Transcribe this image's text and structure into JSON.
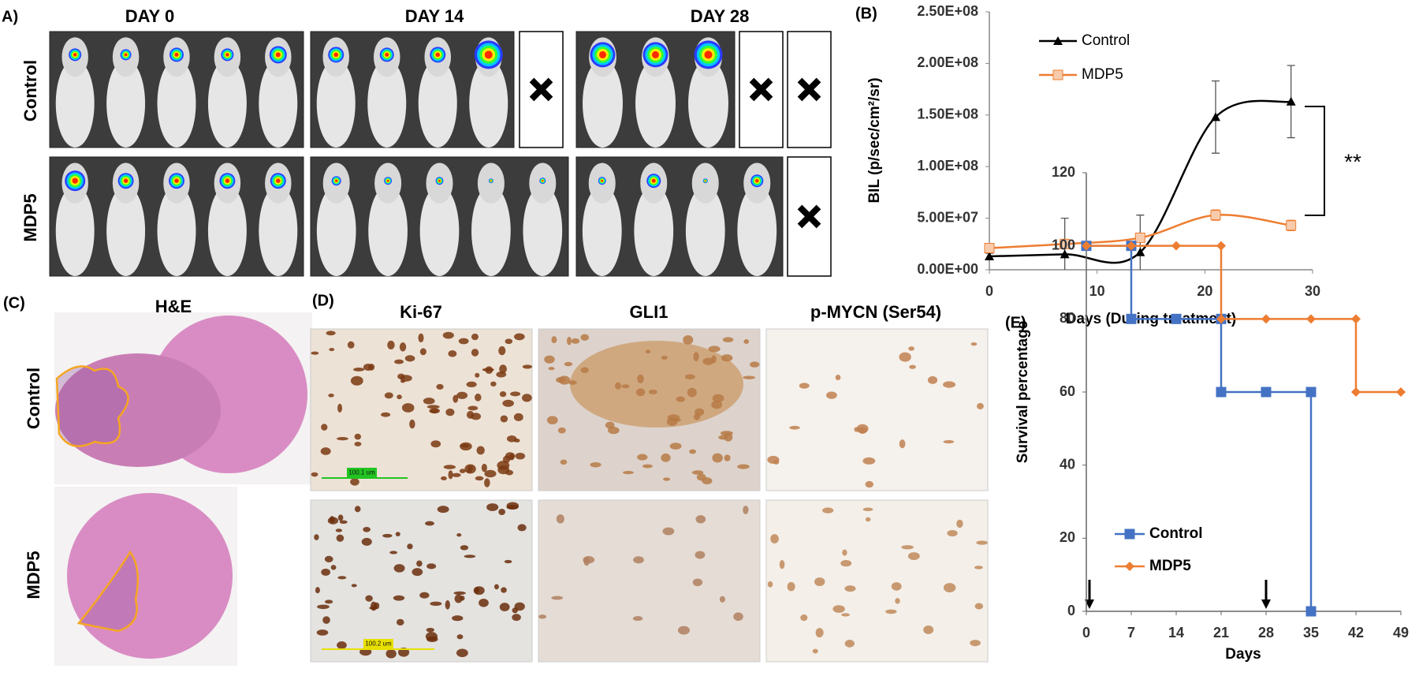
{
  "panel_a": {
    "label": "A)",
    "rows": [
      "Control",
      "MDP5"
    ],
    "days": [
      "DAY 0",
      "DAY 14",
      "DAY 28"
    ]
  },
  "panel_c": {
    "label": "(C)",
    "title": "H&E",
    "rows": [
      "Control",
      "MDP5"
    ]
  },
  "panel_d": {
    "label": "(D)",
    "columns": [
      "Ki-67",
      "GLI1",
      "p-MYCN (Ser54)"
    ],
    "scale_bars": [
      "100.1 um",
      "100.2 um"
    ]
  },
  "chart_data": [
    {
      "type": "line",
      "label": "(B)",
      "smooth": true,
      "x_label": "Days (During treatment)",
      "y_label": "BIL (p/sec/cm²/sr)",
      "x": [
        0,
        7,
        14,
        21,
        28
      ],
      "series": [
        {
          "name": "Control",
          "color": "#000000",
          "marker": "triangle",
          "values": [
            13000000,
            15000000,
            17000000,
            148000000,
            163000000
          ],
          "errors": [
            3000000,
            35000000,
            36000000,
            35000000,
            35000000
          ]
        },
        {
          "name": "MDP5",
          "color": "#ed7d31",
          "marker": "square",
          "values": [
            21000000,
            25000000,
            31000000,
            53000000,
            43000000
          ],
          "errors": [
            2000000,
            2000000,
            3000000,
            5000000,
            5000000
          ]
        }
      ],
      "xlim": [
        0,
        30
      ],
      "xticks": [
        0,
        10,
        20,
        30
      ],
      "ylim": [
        0,
        250000000
      ],
      "yticks": [
        {
          "value": 0,
          "label": "0.00E+00"
        },
        {
          "value": 50000000,
          "label": "5.00E+07"
        },
        {
          "value": 100000000,
          "label": "1.00E+08"
        },
        {
          "value": 150000000,
          "label": "1.50E+08"
        },
        {
          "value": 200000000,
          "label": "2.00E+08"
        },
        {
          "value": 250000000,
          "label": "2.50E+08"
        }
      ],
      "annotation": "**"
    },
    {
      "type": "line",
      "label": "(E)",
      "smooth": false,
      "x_label": "Days",
      "y_label": "Survival percentage",
      "series": [
        {
          "name": "Control",
          "color": "#4472c4",
          "marker": "square",
          "x": [
            0,
            7,
            7,
            14,
            21,
            21,
            28,
            35,
            35
          ],
          "values": [
            100,
            100,
            80,
            80,
            80,
            60,
            60,
            60,
            0
          ]
        },
        {
          "name": "MDP5",
          "color": "#ed7d31",
          "marker": "diamond",
          "x": [
            0,
            7,
            14,
            21,
            21,
            28,
            35,
            42,
            42,
            49
          ],
          "values": [
            100,
            100,
            100,
            100,
            80,
            80,
            80,
            80,
            60,
            60
          ]
        }
      ],
      "xlim": [
        0,
        49
      ],
      "xticks": [
        0,
        7,
        14,
        21,
        28,
        35,
        42,
        49
      ],
      "ylim": [
        0,
        120
      ],
      "yticks": [
        0,
        20,
        40,
        60,
        80,
        100,
        120
      ]
    }
  ]
}
